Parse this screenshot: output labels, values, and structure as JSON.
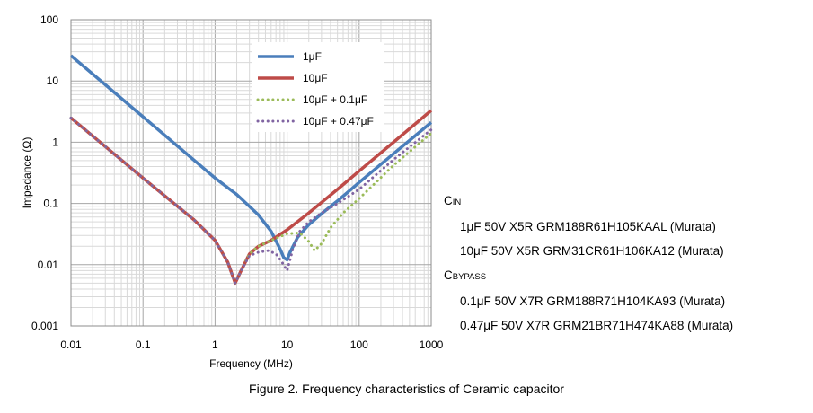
{
  "chart_data": {
    "type": "line",
    "title": "",
    "xlabel": "Frequency (MHz)",
    "ylabel": "Impedance (Ω)",
    "x_scale": "log",
    "y_scale": "log",
    "xlim": [
      0.01,
      1000
    ],
    "ylim": [
      0.001,
      100
    ],
    "x_ticks": [
      "0.01",
      "0.1",
      "1",
      "10",
      "100",
      "1000"
    ],
    "y_ticks": [
      "0.001",
      "0.01",
      "0.1",
      "1",
      "10",
      "100"
    ],
    "grid": true,
    "legend_position": "top-right",
    "series": [
      {
        "name": "1μF",
        "color": "#4a7ebb",
        "style": "solid",
        "points": [
          [
            0.01,
            26
          ],
          [
            0.1,
            2.6
          ],
          [
            1,
            0.26
          ],
          [
            2,
            0.14
          ],
          [
            4,
            0.065
          ],
          [
            6,
            0.035
          ],
          [
            8,
            0.018
          ],
          [
            9,
            0.013
          ],
          [
            10,
            0.012
          ],
          [
            11,
            0.016
          ],
          [
            14,
            0.028
          ],
          [
            20,
            0.045
          ],
          [
            30,
            0.068
          ],
          [
            50,
            0.11
          ],
          [
            100,
            0.22
          ],
          [
            300,
            0.65
          ],
          [
            1000,
            2.1
          ]
        ]
      },
      {
        "name": "10μF",
        "color": "#be4b48",
        "style": "solid",
        "points": [
          [
            0.01,
            2.5
          ],
          [
            0.1,
            0.26
          ],
          [
            0.5,
            0.055
          ],
          [
            1,
            0.025
          ],
          [
            1.5,
            0.011
          ],
          [
            1.9,
            0.005
          ],
          [
            2.3,
            0.008
          ],
          [
            3,
            0.015
          ],
          [
            4,
            0.02
          ],
          [
            6,
            0.025
          ],
          [
            10,
            0.037
          ],
          [
            20,
            0.07
          ],
          [
            50,
            0.17
          ],
          [
            100,
            0.34
          ],
          [
            300,
            1.0
          ],
          [
            1000,
            3.3
          ]
        ]
      },
      {
        "name": "10μF + 0.1μF",
        "color": "#9bbb59",
        "style": "dotted",
        "points": [
          [
            0.01,
            2.5
          ],
          [
            0.1,
            0.26
          ],
          [
            0.5,
            0.055
          ],
          [
            1,
            0.025
          ],
          [
            1.5,
            0.011
          ],
          [
            1.9,
            0.005
          ],
          [
            2.3,
            0.008
          ],
          [
            3,
            0.015
          ],
          [
            4,
            0.02
          ],
          [
            6,
            0.025
          ],
          [
            10,
            0.032
          ],
          [
            15,
            0.033
          ],
          [
            20,
            0.024
          ],
          [
            24,
            0.017
          ],
          [
            30,
            0.022
          ],
          [
            40,
            0.04
          ],
          [
            60,
            0.07
          ],
          [
            100,
            0.12
          ],
          [
            300,
            0.42
          ],
          [
            1000,
            1.4
          ]
        ]
      },
      {
        "name": "10μF + 0.47μF",
        "color": "#8064a2",
        "style": "dotted",
        "points": [
          [
            0.01,
            2.5
          ],
          [
            0.1,
            0.26
          ],
          [
            0.5,
            0.055
          ],
          [
            1,
            0.025
          ],
          [
            1.5,
            0.011
          ],
          [
            1.9,
            0.005
          ],
          [
            2.3,
            0.008
          ],
          [
            3,
            0.014
          ],
          [
            4,
            0.016
          ],
          [
            5.5,
            0.017
          ],
          [
            7,
            0.015
          ],
          [
            8.5,
            0.011
          ],
          [
            10,
            0.008
          ],
          [
            12,
            0.018
          ],
          [
            15,
            0.035
          ],
          [
            20,
            0.05
          ],
          [
            30,
            0.07
          ],
          [
            50,
            0.1
          ],
          [
            100,
            0.17
          ],
          [
            300,
            0.52
          ],
          [
            1000,
            1.6
          ]
        ]
      }
    ]
  },
  "notes": {
    "cin_main": "C",
    "cin_sub": "IN",
    "cin_items": [
      "1μF 50V X5R GRM188R61H105KAAL (Murata)",
      "10μF 50V X5R GRM31CR61H106KA12 (Murata)"
    ],
    "cbypass_main": "C",
    "cbypass_sub": "BYPASS",
    "cbypass_items": [
      "0.1μF 50V X7R GRM188R71H104KA93 (Murata)",
      "0.47μF 50V X7R GRM21BR71H474KA88 (Murata)"
    ]
  },
  "caption": "Figure 2. Frequency characteristics of Ceramic capacitor"
}
